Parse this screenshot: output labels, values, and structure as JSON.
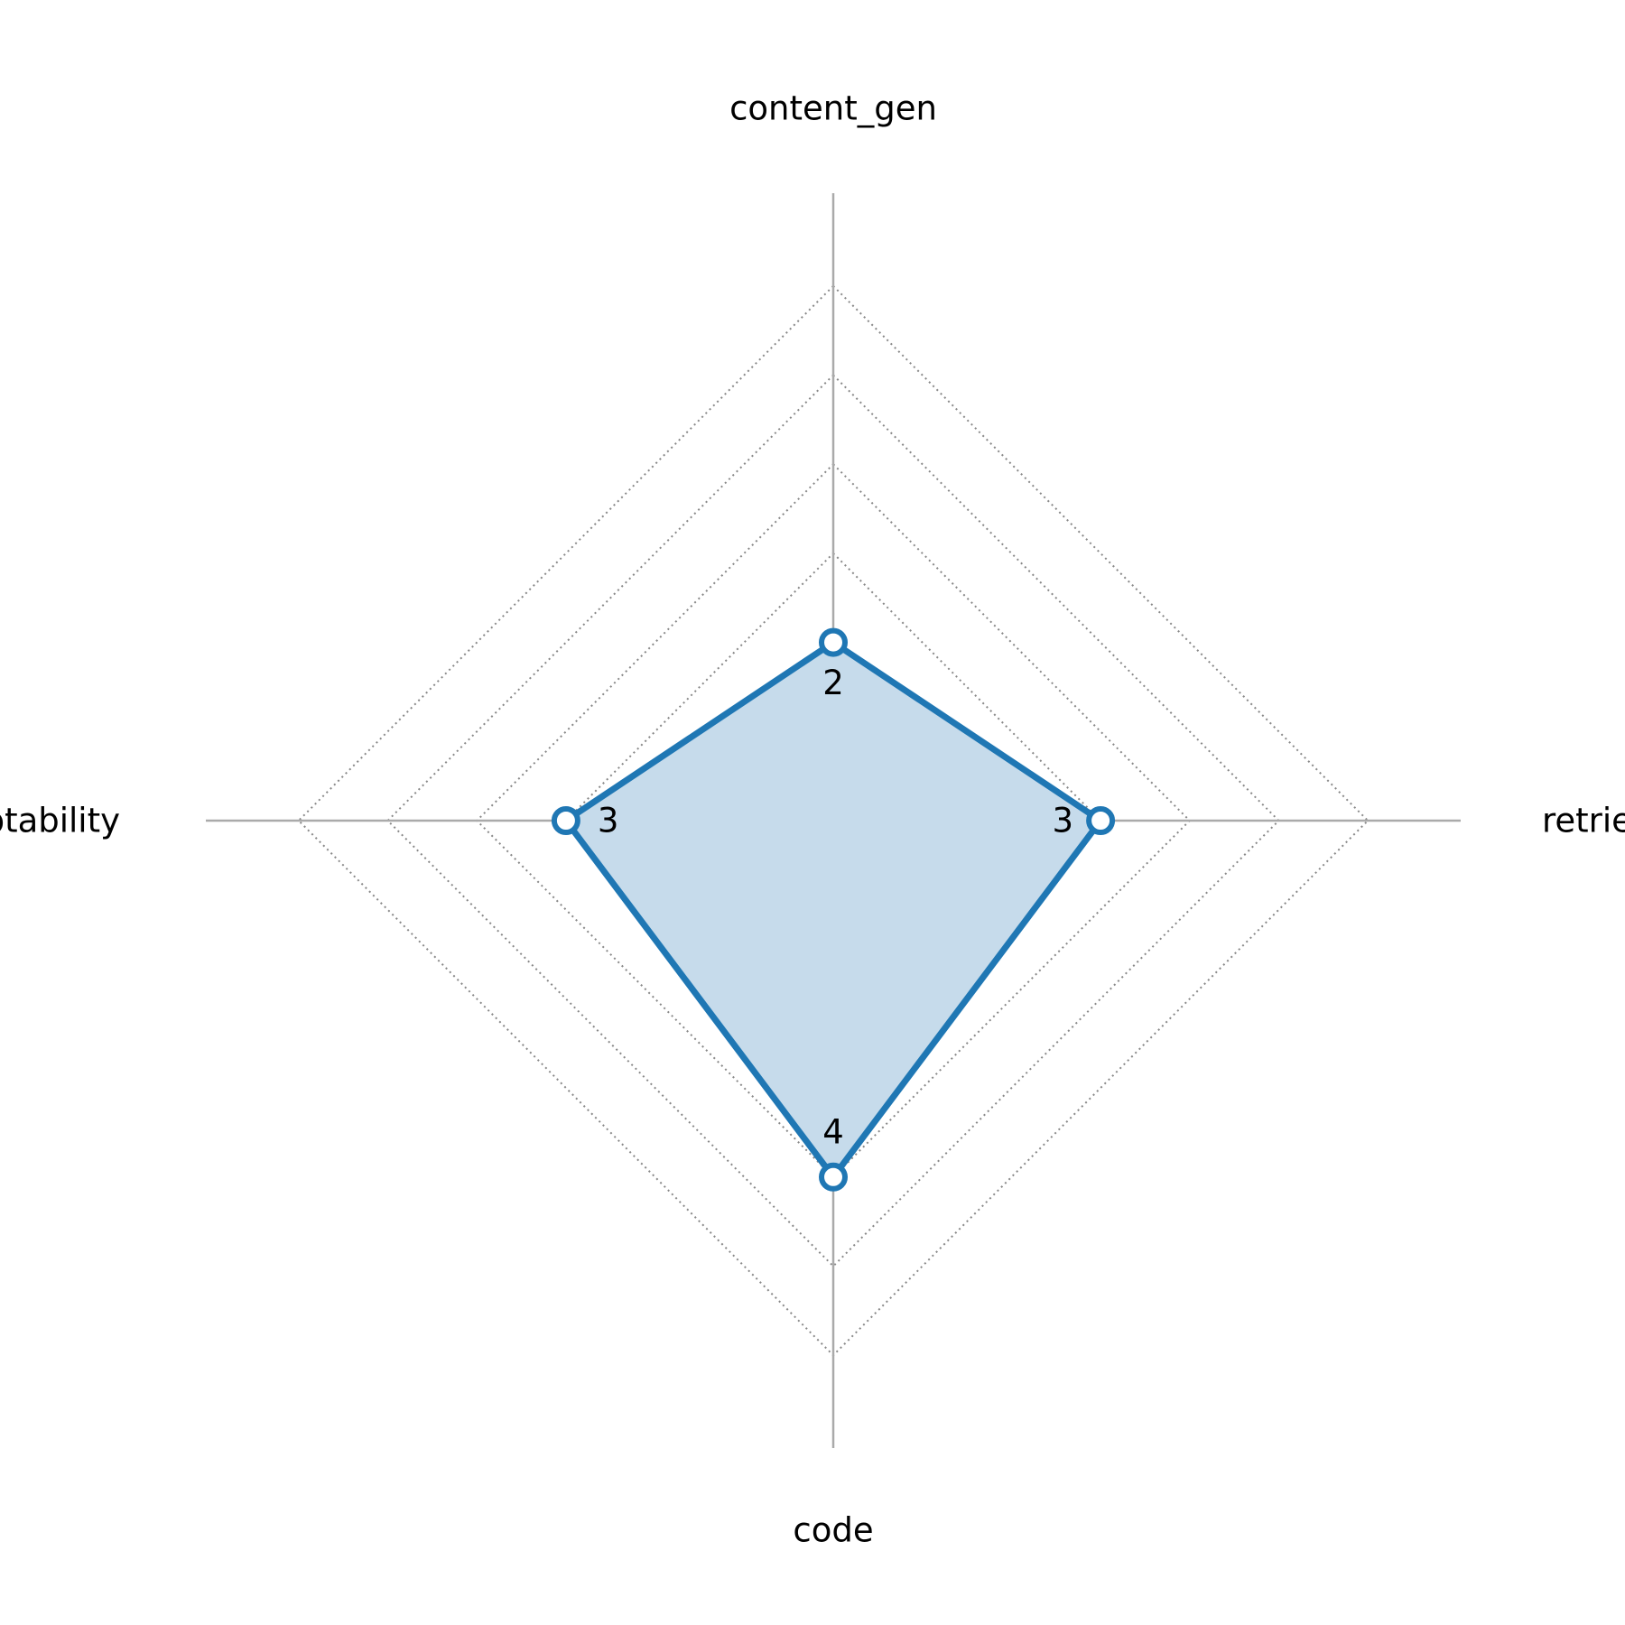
{
  "chart_data": {
    "type": "radar",
    "axes": [
      "content_gen",
      "retrieval",
      "code",
      "adaptability"
    ],
    "series": [
      {
        "values": [
          2,
          3,
          4,
          3
        ]
      }
    ],
    "rlim": [
      0,
      6
    ],
    "grid_levels": [
      1,
      2,
      3,
      4,
      5,
      6
    ],
    "grid": true,
    "grid_style": "dotted",
    "legend": "none",
    "title": ""
  },
  "colors": {
    "series_line": "#1f77b4",
    "series_fill": "#c6dbeb",
    "marker_fill": "#ffffff",
    "axis_line": "#aaaaaa",
    "grid_line": "#888888",
    "text": "#000000"
  }
}
